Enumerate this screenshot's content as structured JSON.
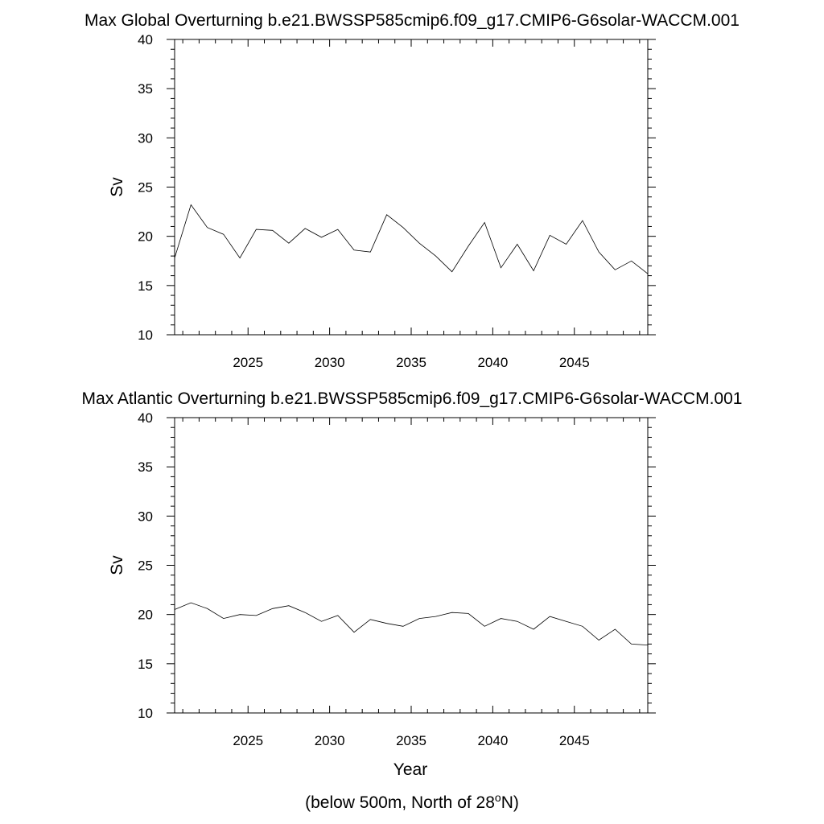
{
  "chart_data": [
    {
      "type": "line",
      "title": "Max Global Overturning b.e21.BWSSP585cmip6.f09_g17.CMIP6-G6solar-WACCM.001",
      "xlabel": "",
      "ylabel": "Sv",
      "xlim": [
        2020.5,
        2049.5
      ],
      "ylim": [
        10,
        40
      ],
      "xticks": [
        2025,
        2030,
        2035,
        2040,
        2045
      ],
      "yticks": [
        10,
        15,
        20,
        25,
        30,
        35,
        40
      ],
      "grid": false,
      "series": [
        {
          "x": [
            2020.5,
            2021.5,
            2022.5,
            2023.5,
            2024.5,
            2025.5,
            2026.5,
            2027.5,
            2028.5,
            2029.5,
            2030.5,
            2031.5,
            2032.5,
            2033.5,
            2034.5,
            2035.5,
            2036.5,
            2037.5,
            2038.5,
            2039.5,
            2040.5,
            2041.5,
            2042.5,
            2043.5,
            2044.5,
            2045.5,
            2046.5,
            2047.5,
            2048.5,
            2049.5
          ],
          "values": [
            17.8,
            23.2,
            20.9,
            20.2,
            17.8,
            20.7,
            20.6,
            19.3,
            20.8,
            19.9,
            20.7,
            18.6,
            18.4,
            22.2,
            20.9,
            19.3,
            18.0,
            16.4,
            19.0,
            21.4,
            16.8,
            19.2,
            16.5,
            20.1,
            19.2,
            21.6,
            18.4,
            16.6,
            17.5,
            16.2
          ]
        }
      ]
    },
    {
      "type": "line",
      "title": "Max Atlantic Overturning b.e21.BWSSP585cmip6.f09_g17.CMIP6-G6solar-WACCM.001",
      "xlabel": "Year",
      "ylabel": "Sv",
      "xlim": [
        2020.5,
        2049.5
      ],
      "ylim": [
        10,
        40
      ],
      "xticks": [
        2025,
        2030,
        2035,
        2040,
        2045
      ],
      "yticks": [
        10,
        15,
        20,
        25,
        30,
        35,
        40
      ],
      "grid": false,
      "series": [
        {
          "x": [
            2020.5,
            2021.5,
            2022.5,
            2023.5,
            2024.5,
            2025.5,
            2026.5,
            2027.5,
            2028.5,
            2029.5,
            2030.5,
            2031.5,
            2032.5,
            2033.5,
            2034.5,
            2035.5,
            2036.5,
            2037.5,
            2038.5,
            2039.5,
            2040.5,
            2041.5,
            2042.5,
            2043.5,
            2044.5,
            2045.5,
            2046.5,
            2047.5,
            2048.5,
            2049.5
          ],
          "values": [
            20.5,
            21.2,
            20.6,
            19.6,
            20.0,
            19.9,
            20.6,
            20.9,
            20.2,
            19.3,
            19.9,
            18.2,
            19.5,
            19.1,
            18.8,
            19.6,
            19.8,
            20.2,
            20.1,
            18.8,
            19.6,
            19.3,
            18.5,
            19.8,
            19.3,
            18.8,
            17.4,
            18.5,
            17.0,
            16.9
          ]
        }
      ]
    }
  ],
  "footnote": "(below 500m, North of 28",
  "footnote_sup": "o",
  "footnote_end": "N)"
}
